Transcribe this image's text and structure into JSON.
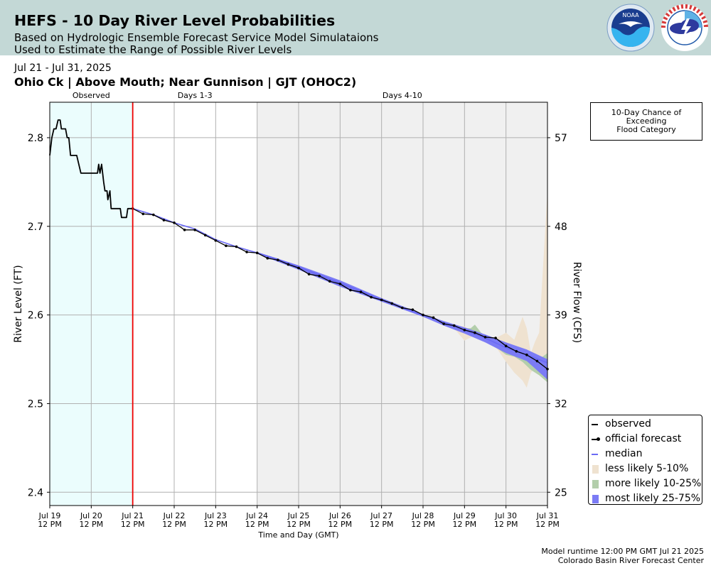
{
  "header": {
    "title": "HEFS - 10 Day River Level Probabilities",
    "subtitle_line1": "Based on Hydrologic Ensemble Forecast Service Model Simulataions",
    "subtitle_line2": "Used to Estimate the Range of Possible River Levels",
    "background_color": "#c3d8d6",
    "logos": [
      "noaa-logo",
      "national-weather-service-logo"
    ]
  },
  "date_range": "Jul 21 - Jul 31, 2025",
  "location": "Ohio Ck | Above Mouth; Near Gunnison | GJT (OHOC2)",
  "flood_box": {
    "line1": "10-Day Chance of",
    "line2": "Exceeding",
    "line3": "Flood Category"
  },
  "footer": {
    "line1": "Model runtime 12:00 PM GMT Jul 21 2025",
    "line2": "Colorado Basin River Forecast Center"
  },
  "chart_data": {
    "type": "line",
    "xlabel": "Time and Day (GMT)",
    "ylabel": "River Level (FT)",
    "ylabel_right": "River Flow (CFS)",
    "xlim": [
      0,
      12
    ],
    "ylim": [
      2.385,
      2.84
    ],
    "x_ticks": [
      {
        "x": 0,
        "day": "Jul 19",
        "time": "12 PM"
      },
      {
        "x": 1,
        "day": "Jul 20",
        "time": "12 PM"
      },
      {
        "x": 2,
        "day": "Jul 21",
        "time": "12 PM"
      },
      {
        "x": 3,
        "day": "Jul 22",
        "time": "12 PM"
      },
      {
        "x": 4,
        "day": "Jul 23",
        "time": "12 PM"
      },
      {
        "x": 5,
        "day": "Jul 24",
        "time": "12 PM"
      },
      {
        "x": 6,
        "day": "Jul 25",
        "time": "12 PM"
      },
      {
        "x": 7,
        "day": "Jul 26",
        "time": "12 PM"
      },
      {
        "x": 8,
        "day": "Jul 27",
        "time": "12 PM"
      },
      {
        "x": 9,
        "day": "Jul 28",
        "time": "12 PM"
      },
      {
        "x": 10,
        "day": "Jul 29",
        "time": "12 PM"
      },
      {
        "x": 11,
        "day": "Jul 30",
        "time": "12 PM"
      },
      {
        "x": 12,
        "day": "Jul 31",
        "time": "12 PM"
      }
    ],
    "y_ticks": [
      2.4,
      2.5,
      2.6,
      2.7,
      2.8
    ],
    "y_tick_labels": [
      "2.4",
      "2.5",
      "2.6",
      "2.7",
      "2.8"
    ],
    "right_ticks": [
      {
        "stage": 2.4,
        "label": "25"
      },
      {
        "stage": 2.5,
        "label": "32"
      },
      {
        "stage": 2.6,
        "label": "39"
      },
      {
        "stage": 2.7,
        "label": "48"
      },
      {
        "stage": 2.8,
        "label": "57"
      }
    ],
    "grid": true,
    "periods": [
      {
        "label": "Observed",
        "start": 0,
        "end": 2,
        "color": "#ebfdfd"
      },
      {
        "label": "Days 1-3",
        "start": 2,
        "end": 5,
        "color": "#ffffff"
      },
      {
        "label": "Days 4-10",
        "start": 5,
        "end": 12,
        "color": "#f0f0f0"
      }
    ],
    "forecast_start": 2,
    "forecast_start_color": "#ee0000",
    "observed": [
      [
        0,
        2.78
      ],
      [
        0.05,
        2.8
      ],
      [
        0.1,
        2.81
      ],
      [
        0.15,
        2.81
      ],
      [
        0.2,
        2.82
      ],
      [
        0.25,
        2.82
      ],
      [
        0.28,
        2.81
      ],
      [
        0.38,
        2.81
      ],
      [
        0.42,
        2.8
      ],
      [
        0.46,
        2.8
      ],
      [
        0.5,
        2.78
      ],
      [
        0.65,
        2.78
      ],
      [
        0.75,
        2.76
      ],
      [
        1.15,
        2.76
      ],
      [
        1.18,
        2.77
      ],
      [
        1.21,
        2.76
      ],
      [
        1.25,
        2.77
      ],
      [
        1.3,
        2.75
      ],
      [
        1.33,
        2.74
      ],
      [
        1.38,
        2.74
      ],
      [
        1.4,
        2.73
      ],
      [
        1.45,
        2.74
      ],
      [
        1.48,
        2.72
      ],
      [
        1.7,
        2.72
      ],
      [
        1.73,
        2.71
      ],
      [
        1.85,
        2.71
      ],
      [
        1.88,
        2.72
      ],
      [
        2,
        2.72
      ]
    ],
    "official_forecast": [
      [
        2,
        2.72
      ],
      [
        2.25,
        2.714
      ],
      [
        2.5,
        2.713
      ],
      [
        2.75,
        2.707
      ],
      [
        3,
        2.704
      ],
      [
        3.25,
        2.696
      ],
      [
        3.5,
        2.696
      ],
      [
        3.75,
        2.69
      ],
      [
        4,
        2.684
      ],
      [
        4.25,
        2.678
      ],
      [
        4.5,
        2.677
      ],
      [
        4.75,
        2.671
      ],
      [
        5,
        2.67
      ],
      [
        5.25,
        2.664
      ],
      [
        5.5,
        2.662
      ],
      [
        5.75,
        2.657
      ],
      [
        6,
        2.653
      ],
      [
        6.25,
        2.646
      ],
      [
        6.5,
        2.644
      ],
      [
        6.75,
        2.638
      ],
      [
        7,
        2.635
      ],
      [
        7.25,
        2.628
      ],
      [
        7.5,
        2.626
      ],
      [
        7.75,
        2.62
      ],
      [
        8,
        2.617
      ],
      [
        8.25,
        2.613
      ],
      [
        8.5,
        2.608
      ],
      [
        8.75,
        2.606
      ],
      [
        9,
        2.6
      ],
      [
        9.25,
        2.597
      ],
      [
        9.5,
        2.59
      ],
      [
        9.75,
        2.588
      ],
      [
        10,
        2.583
      ],
      [
        10.25,
        2.58
      ],
      [
        10.5,
        2.575
      ],
      [
        10.75,
        2.574
      ],
      [
        11,
        2.565
      ],
      [
        11.25,
        2.559
      ],
      [
        11.5,
        2.555
      ],
      [
        11.75,
        2.548
      ],
      [
        12,
        2.539
      ]
    ],
    "median": [
      [
        2,
        2.72
      ],
      [
        2.5,
        2.713
      ],
      [
        3,
        2.704
      ],
      [
        3.5,
        2.697
      ],
      [
        4,
        2.685
      ],
      [
        4.5,
        2.677
      ],
      [
        5,
        2.67
      ],
      [
        5.5,
        2.663
      ],
      [
        6,
        2.654
      ],
      [
        6.5,
        2.645
      ],
      [
        7,
        2.636
      ],
      [
        7.5,
        2.627
      ],
      [
        8,
        2.617
      ],
      [
        8.5,
        2.608
      ],
      [
        9,
        2.6
      ],
      [
        9.5,
        2.591
      ],
      [
        10,
        2.583
      ],
      [
        10.5,
        2.574
      ],
      [
        11,
        2.563
      ],
      [
        11.5,
        2.555
      ],
      [
        12,
        2.546
      ]
    ],
    "band_less_likely": [
      [
        9.3,
        2.594,
        2.594
      ],
      [
        9.6,
        2.589,
        2.588
      ],
      [
        9.8,
        2.582,
        2.588
      ],
      [
        10,
        2.571,
        2.587
      ],
      [
        10.2,
        2.576,
        2.582
      ],
      [
        10.4,
        2.575,
        2.578
      ],
      [
        10.6,
        2.569,
        2.575
      ],
      [
        10.8,
        2.561,
        2.575
      ],
      [
        11,
        2.547,
        2.58
      ],
      [
        11.2,
        2.535,
        2.572
      ],
      [
        11.4,
        2.526,
        2.598
      ],
      [
        11.5,
        2.518,
        2.585
      ],
      [
        11.6,
        2.535,
        2.557
      ],
      [
        11.7,
        2.54,
        2.57
      ],
      [
        11.8,
        2.538,
        2.58
      ],
      [
        11.9,
        2.532,
        2.66
      ],
      [
        12,
        2.525,
        2.74
      ]
    ],
    "band_more_likely": [
      [
        9.6,
        2.589,
        2.59
      ],
      [
        10,
        2.58,
        2.585
      ],
      [
        10.15,
        2.577,
        2.585
      ],
      [
        10.25,
        2.576,
        2.589
      ],
      [
        10.4,
        2.573,
        2.58
      ],
      [
        10.6,
        2.568,
        2.574
      ],
      [
        10.8,
        2.562,
        2.573
      ],
      [
        11,
        2.555,
        2.567
      ],
      [
        11.2,
        2.553,
        2.561
      ],
      [
        11.4,
        2.547,
        2.557
      ],
      [
        11.6,
        2.538,
        2.55
      ],
      [
        11.8,
        2.532,
        2.55
      ],
      [
        12,
        2.524,
        2.557
      ]
    ],
    "band_most_likely": [
      [
        5,
        2.669,
        2.671
      ],
      [
        6,
        2.651,
        2.656
      ],
      [
        7,
        2.632,
        2.639
      ],
      [
        8,
        2.615,
        2.619
      ],
      [
        9,
        2.598,
        2.601
      ],
      [
        9.5,
        2.588,
        2.593
      ],
      [
        10,
        2.579,
        2.586
      ],
      [
        10.5,
        2.569,
        2.578
      ],
      [
        11,
        2.557,
        2.569
      ],
      [
        11.5,
        2.548,
        2.561
      ],
      [
        12,
        2.527,
        2.55
      ]
    ],
    "legend": [
      {
        "label": "observed",
        "kind": "line",
        "color": "#000000"
      },
      {
        "label": "official forecast",
        "kind": "dotline",
        "color": "#000000"
      },
      {
        "label": "median",
        "kind": "line",
        "color": "#6a6af5"
      },
      {
        "label": "less likely 5-10%",
        "kind": "patch",
        "color": "#efe2d0"
      },
      {
        "label": "more likely 10-25%",
        "kind": "patch",
        "color": "#b3ceab"
      },
      {
        "label": "most likely 25-75%",
        "kind": "patch",
        "color": "#7b7bf5"
      }
    ]
  }
}
